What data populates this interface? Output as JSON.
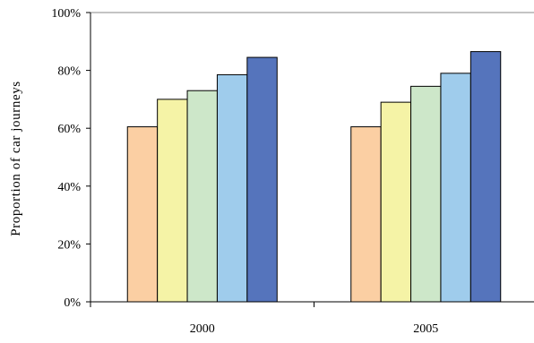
{
  "chart_data": {
    "type": "bar",
    "categories": [
      "2000",
      "2005"
    ],
    "series": [
      {
        "color": "#FBCFA3",
        "values": [
          60.5,
          60.5
        ]
      },
      {
        "color": "#F5F3A6",
        "values": [
          70,
          69
        ]
      },
      {
        "color": "#CDE7C9",
        "values": [
          73,
          74.5
        ]
      },
      {
        "color": "#9FCCEC",
        "values": [
          78.5,
          79
        ]
      },
      {
        "color": "#5574BC",
        "values": [
          84.5,
          86.5
        ]
      }
    ],
    "ylabel": "Proportion of car journeys",
    "ylim": [
      0,
      100
    ],
    "yticks": [
      0,
      20,
      40,
      60,
      80,
      100
    ],
    "ytick_labels": [
      "0%",
      "20%",
      "40%",
      "60%",
      "80%",
      "100%"
    ],
    "grid": "top line only",
    "legend": "none"
  }
}
